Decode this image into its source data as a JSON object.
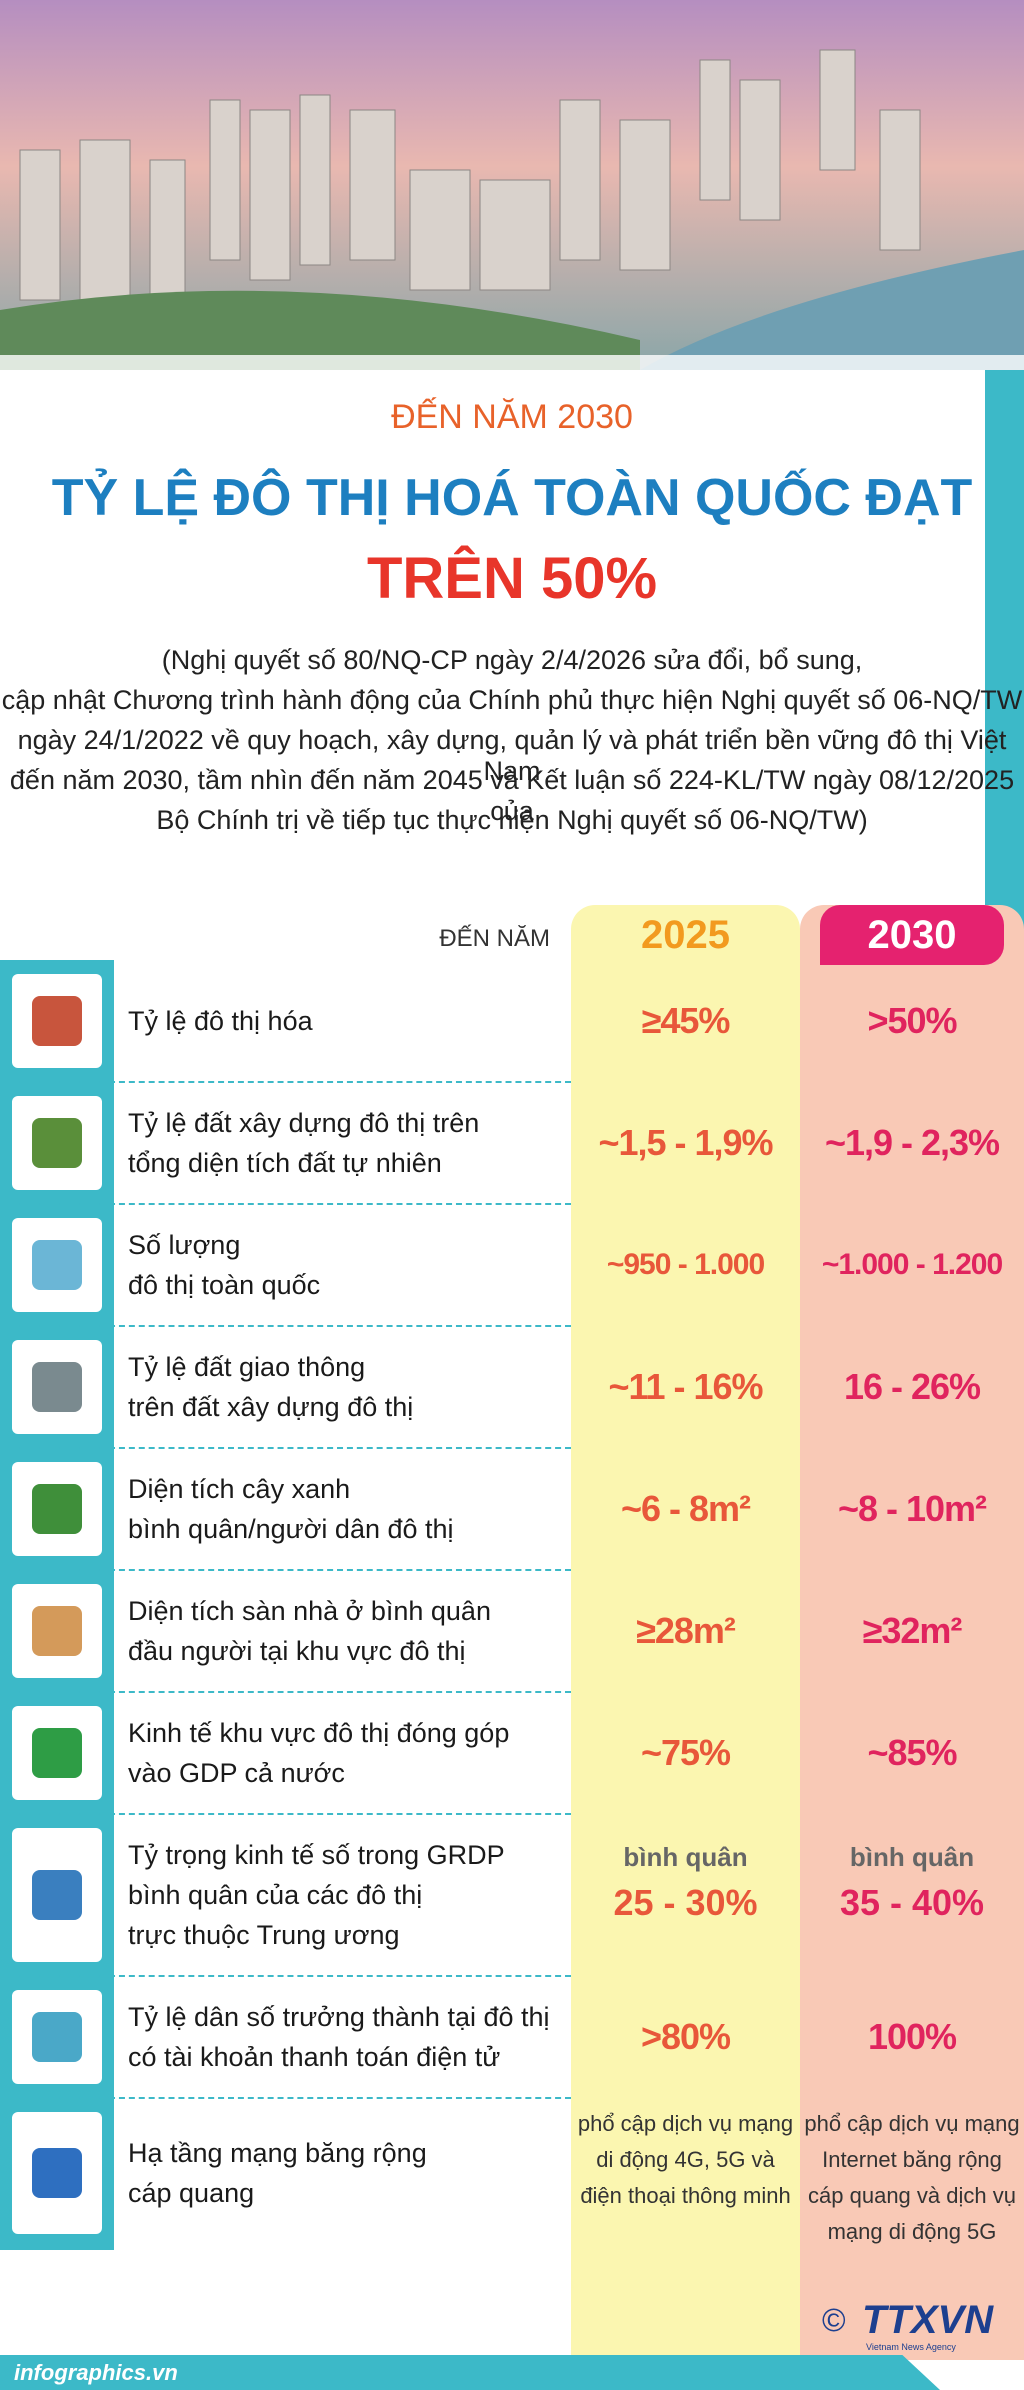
{
  "header": {
    "pretitle": "ĐẾN NĂM 2030",
    "title": "TỶ LỆ ĐÔ THỊ HOÁ TOÀN QUỐC ĐẠT",
    "highlight": "TRÊN 50%",
    "description": [
      "(Nghị quyết số 80/NQ-CP ngày 2/4/2026 sửa đổi, bổ sung,",
      "cập nhật Chương trình hành động của Chính phủ thực hiện Nghị quyết số 06-NQ/TW",
      "ngày 24/1/2022 về quy hoạch, xây dựng, quản lý và phát triển bền vững đô thị Việt Nam",
      "đến năm 2030, tầm nhìn đến năm 2045 và Kết luận số 224-KL/TW ngày 08/12/2025 của",
      "Bộ Chính trị về tiếp tục thực hiện Nghị quyết số 06-NQ/TW)"
    ]
  },
  "table": {
    "column_label": "ĐẾN NĂM",
    "columns": [
      "2025",
      "2030"
    ],
    "rows": [
      {
        "label": [
          "Tỷ lệ đô thị hóa"
        ],
        "values": [
          "≥45%",
          ">50%"
        ]
      },
      {
        "label": [
          "Tỷ lệ đất xây dựng đô thị trên",
          "tổng diện tích đất tự nhiên"
        ],
        "values": [
          "~1,5 - 1,9%",
          "~1,9 - 2,3%"
        ]
      },
      {
        "label": [
          "Số lượng",
          "đô thị toàn quốc"
        ],
        "values": [
          "~950 - 1.000",
          "~1.000 - 1.200"
        ]
      },
      {
        "label": [
          "Tỷ lệ đất giao thông",
          "trên đất xây dựng đô thị"
        ],
        "values": [
          "~11 - 16%",
          "16 - 26%"
        ]
      },
      {
        "label": [
          "Diện tích cây xanh",
          "bình quân/người dân đô thị"
        ],
        "values": [
          "~6 - 8m²",
          "~8 - 10m²"
        ]
      },
      {
        "label": [
          "Diện tích sàn nhà ở bình quân",
          "đầu người tại khu vực đô thị"
        ],
        "values": [
          "≥28m²",
          "≥32m²"
        ]
      },
      {
        "label": [
          "Kinh tế khu vực đô thị đóng góp",
          "vào GDP cả nước"
        ],
        "values": [
          "~75%",
          "~85%"
        ]
      },
      {
        "label": [
          "Tỷ trọng kinh tế số trong GRDP",
          "bình quân của các đô thị",
          "trực thuộc Trung ương"
        ],
        "notes": [
          "bình quân",
          "bình quân"
        ],
        "values": [
          "25 - 30%",
          "35 - 40%"
        ]
      },
      {
        "label": [
          "Tỷ lệ dân số trưởng thành tại đô thị",
          "có tài khoản thanh toán điện tử"
        ],
        "values": [
          ">80%",
          "100%"
        ]
      },
      {
        "label": [
          "Hạ tầng mạng băng rộng",
          "cáp quang"
        ],
        "values": [
          [
            "phổ cập dịch vụ mạng",
            "di động 4G, 5G và",
            "điện thoại thông minh"
          ],
          [
            "phổ cập dịch vụ mạng",
            "Internet băng rộng",
            "cáp quang và dịch vụ",
            "mạng di động 5G"
          ]
        ]
      }
    ]
  },
  "footer": {
    "site": "infographics.vn",
    "copyright": "©",
    "credit": "TTXVN",
    "agency": "Vietnam News Agency"
  }
}
